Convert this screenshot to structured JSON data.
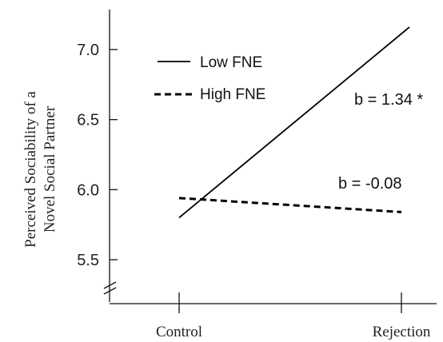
{
  "chart_data": {
    "type": "line",
    "title": "",
    "ylabel_line1": "Perceived Sociability of a",
    "ylabel_line2": "Novel Social Partner",
    "xlabel": "",
    "categories": [
      "Control",
      "Rejection"
    ],
    "ylim": [
      5.5,
      7.2
    ],
    "yticks": [
      5.5,
      6.0,
      6.5,
      7.0
    ],
    "ytick_labels": [
      "5.5",
      "6.0",
      "6.5",
      "7.0"
    ],
    "axis_break": true,
    "grid": false,
    "legend_position": "top-left",
    "series": [
      {
        "name": "Low FNE",
        "style": "solid",
        "color": "#000000",
        "values": [
          5.8,
          7.16
        ]
      },
      {
        "name": "High FNE",
        "style": "dashed",
        "color": "#000000",
        "values": [
          5.94,
          5.84
        ]
      }
    ],
    "annotations": [
      "b = 1.34 *",
      "b = -0.08"
    ]
  }
}
